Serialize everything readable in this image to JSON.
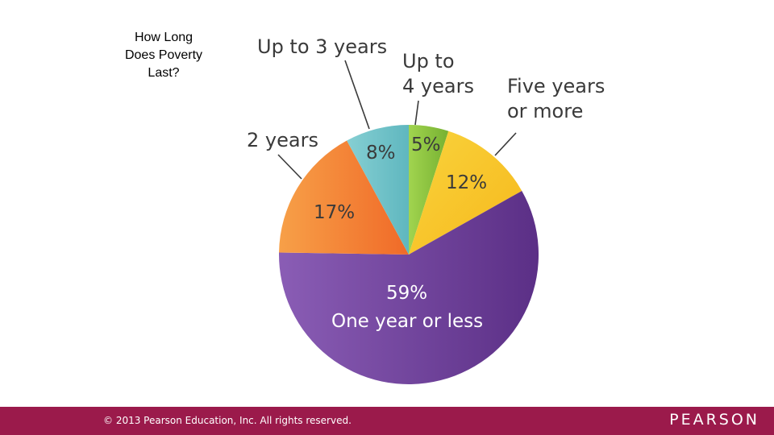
{
  "slide": {
    "title_lines": [
      "How Long",
      "Does Poverty",
      "Last?"
    ]
  },
  "chart_data": {
    "type": "pie",
    "slices": [
      {
        "label": "Up to 4 years",
        "value": 5,
        "display": "5%",
        "color": "#8cc63f"
      },
      {
        "label": "Five years or more",
        "value": 12,
        "display": "12%",
        "color": "#f7c325"
      },
      {
        "label": "One year or less",
        "value": 59,
        "display": "59%",
        "color": "#6a3a94"
      },
      {
        "label": "2 years",
        "value": 17,
        "display": "17%",
        "color": "#f47f30"
      },
      {
        "label": "Up to 3 years",
        "value": 8,
        "display": "8%",
        "color": "#76c4c9"
      }
    ],
    "callouts": {
      "up_to_4": [
        "Up to",
        "4 years"
      ],
      "five_years": [
        "Five years",
        "or more"
      ],
      "one_year": "One year or less",
      "two_years": "2 years",
      "up_to_3": "Up to 3 years"
    }
  },
  "footer": {
    "copyright": "© 2013  Pearson Education, Inc. All rights reserved.",
    "brand": "PEARSON"
  }
}
